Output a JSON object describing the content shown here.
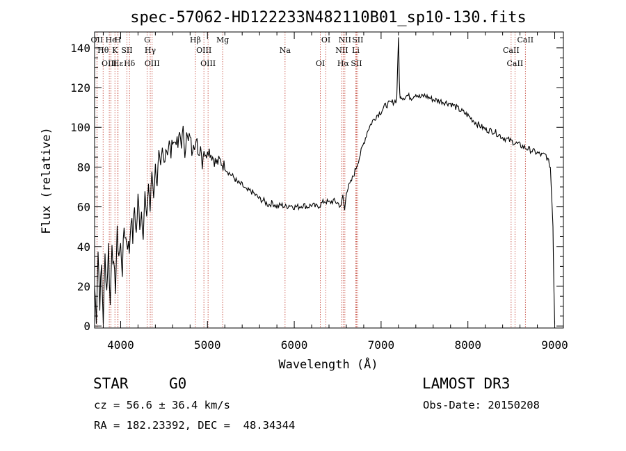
{
  "chart_data": {
    "type": "line",
    "title": "spec-57062-HD122233N482110B01_sp10-130.fits",
    "xlabel": "Wavelength (Å)",
    "ylabel": "Flux (relative)",
    "xlim": [
      3700,
      9100
    ],
    "ylim": [
      -1,
      148
    ],
    "xticks": [
      4000,
      5000,
      6000,
      7000,
      8000,
      9000
    ],
    "yticks": [
      0,
      20,
      40,
      60,
      80,
      100,
      120,
      140
    ],
    "grid": false,
    "series": [
      {
        "x": [
          3700,
          3720,
          3740,
          3760,
          3780,
          3800,
          3820,
          3840,
          3860,
          3880,
          3900,
          3920,
          3940,
          3960,
          3980,
          4000,
          4020,
          4040,
          4060,
          4080,
          4100,
          4120,
          4140,
          4160,
          4180,
          4200,
          4220,
          4240,
          4260,
          4280,
          4300,
          4320,
          4340,
          4360,
          4380,
          4400,
          4420,
          4440,
          4460,
          4480,
          4500,
          4520,
          4540,
          4560,
          4580,
          4600,
          4620,
          4640,
          4660,
          4680,
          4700,
          4720,
          4740,
          4760,
          4780,
          4800,
          4820,
          4840,
          4860,
          4880,
          4900,
          4920,
          4940,
          4960,
          4980,
          5000,
          5050,
          5100,
          5150,
          5200,
          5250,
          5300,
          5350,
          5400,
          5450,
          5500,
          5550,
          5600,
          5650,
          5700,
          5750,
          5800,
          5850,
          5900,
          5950,
          6000,
          6050,
          6100,
          6150,
          6200,
          6250,
          6300,
          6350,
          6400,
          6450,
          6500,
          6540,
          6560,
          6580,
          6600,
          6650,
          6700,
          6750,
          6800,
          6850,
          6900,
          6950,
          7000,
          7050,
          7100,
          7150,
          7180,
          7200,
          7210,
          7220,
          7230,
          7250,
          7300,
          7350,
          7400,
          7450,
          7500,
          7600,
          7700,
          7800,
          7900,
          8000,
          8100,
          8200,
          8300,
          8400,
          8500,
          8600,
          8700,
          8800,
          8850,
          8900,
          8950,
          8980,
          8990,
          9000
        ],
        "y": [
          20,
          5,
          38,
          12,
          30,
          3,
          35,
          18,
          40,
          10,
          44,
          28,
          20,
          46,
          36,
          40,
          28,
          50,
          44,
          42,
          38,
          56,
          44,
          60,
          46,
          64,
          52,
          58,
          48,
          66,
          52,
          72,
          58,
          78,
          66,
          80,
          72,
          86,
          78,
          88,
          82,
          90,
          88,
          92,
          86,
          95,
          92,
          94,
          90,
          97,
          92,
          98,
          88,
          96,
          92,
          97,
          88,
          94,
          90,
          92,
          86,
          92,
          82,
          90,
          84,
          90,
          86,
          82,
          83,
          80,
          77,
          75,
          72,
          71,
          68,
          68,
          66,
          64,
          63,
          61,
          62,
          60,
          61,
          60,
          61,
          60,
          60,
          61,
          60,
          61,
          60,
          61,
          63,
          62,
          63,
          62,
          60,
          66,
          58,
          68,
          72,
          78,
          85,
          92,
          99,
          103,
          106,
          108,
          111,
          112,
          113,
          114,
          146,
          123,
          114,
          116,
          115,
          116,
          115,
          117,
          115,
          116,
          114,
          113,
          112,
          109,
          106,
          102,
          99,
          98,
          95,
          93,
          91,
          89,
          87,
          86,
          86,
          80,
          50,
          20,
          1
        ]
      }
    ],
    "lines": [
      {
        "label": "OII",
        "x": 3727
      },
      {
        "label": "Hθ",
        "x": 3798
      },
      {
        "label": "OIII",
        "x": 3869
      },
      {
        "label": "He",
        "x": 3889
      },
      {
        "label": "K",
        "x": 3934
      },
      {
        "label": "Hε",
        "x": 3970
      },
      {
        "label": "H",
        "x": 3968
      },
      {
        "label": "SII",
        "x": 4072
      },
      {
        "label": "Hδ",
        "x": 4102
      },
      {
        "label": "G",
        "x": 4305
      },
      {
        "label": "Hγ",
        "x": 4341
      },
      {
        "label": "OIII",
        "x": 4363
      },
      {
        "label": "Hβ",
        "x": 4861
      },
      {
        "label": "OIII",
        "x": 4959
      },
      {
        "label": "OIII",
        "x": 5007
      },
      {
        "label": "Mg",
        "x": 5175
      },
      {
        "label": "Na",
        "x": 5894
      },
      {
        "label": "OI",
        "x": 6300
      },
      {
        "label": "OI",
        "x": 6364
      },
      {
        "label": "NII",
        "x": 6548
      },
      {
        "label": "Hα",
        "x": 6563
      },
      {
        "label": "NII",
        "x": 6583
      },
      {
        "label": "Li",
        "x": 6708
      },
      {
        "label": "SII",
        "x": 6716
      },
      {
        "label": "SII",
        "x": 6731
      },
      {
        "label": "CaII",
        "x": 8498
      },
      {
        "label": "CaII",
        "x": 8542
      },
      {
        "label": "CaII",
        "x": 8662
      }
    ]
  },
  "info": {
    "class_label": "STAR",
    "subclass_label": "G0",
    "survey_label": "LAMOST DR3",
    "redshift_text": "cz = 56.6 ± 36.4 km/s",
    "obsdate_text": "Obs-Date: 20150208",
    "coords_text": "RA = 182.23392, DEC =  48.34344"
  }
}
